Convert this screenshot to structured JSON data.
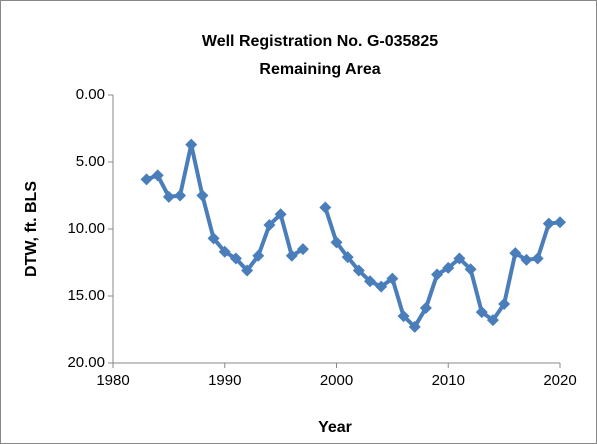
{
  "chart_data": {
    "type": "line",
    "title": "Well Registration No. G-035825",
    "subtitle": "Remaining Area",
    "x_label": "Year",
    "y_label": "DTW, ft. BLS",
    "x": [
      1983,
      1984,
      1985,
      1986,
      1987,
      1988,
      1989,
      1990,
      1991,
      1992,
      1993,
      1994,
      1995,
      1996,
      1997,
      1998,
      1999,
      2000,
      2001,
      2002,
      2003,
      2004,
      2005,
      2006,
      2007,
      2008,
      2009,
      2010,
      2011,
      2012,
      2013,
      2014,
      2015,
      2016,
      2017,
      2018,
      2019,
      2020
    ],
    "series": [
      {
        "color": "#4a7ebb",
        "values": [
          6.3,
          6.0,
          7.6,
          7.5,
          3.7,
          7.5,
          10.7,
          11.7,
          12.2,
          13.1,
          12.0,
          9.7,
          8.9,
          12.0,
          11.5,
          null,
          8.4,
          11.0,
          12.1,
          13.1,
          13.9,
          14.3,
          13.7,
          16.5,
          17.3,
          15.9,
          13.4,
          12.9,
          12.2,
          13.0,
          16.2,
          16.8,
          15.6,
          11.8,
          12.3,
          12.2,
          9.6,
          9.5
        ]
      }
    ],
    "xlim": [
      1980,
      2020
    ],
    "xticks": [
      1980,
      1990,
      2000,
      2010,
      2020
    ],
    "ylim": [
      0,
      20
    ],
    "yticks": [
      {
        "value": 0,
        "label": "0.00"
      },
      {
        "value": 5,
        "label": "5.00"
      },
      {
        "value": 10,
        "label": "10.00"
      },
      {
        "value": 15,
        "label": "15.00"
      },
      {
        "value": 20,
        "label": "20.00"
      }
    ],
    "y_inverted": true,
    "grid": false
  }
}
